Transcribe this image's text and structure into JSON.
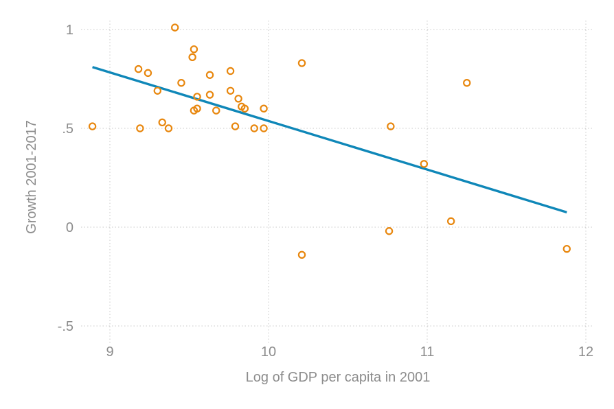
{
  "chart_data": {
    "type": "scatter",
    "title": "",
    "xlabel": "Log of GDP per capita in 2001",
    "ylabel": "Growth 2001-2017",
    "xlim": [
      8.88,
      11.96
    ],
    "ylim": [
      -0.58,
      1.05
    ],
    "x_ticks": [
      9,
      10,
      11,
      12
    ],
    "x_tick_labels": [
      "9",
      "10",
      "11",
      "12"
    ],
    "y_ticks": [
      1,
      0.5,
      0,
      -0.5
    ],
    "y_tick_labels": [
      "1",
      ".5",
      "0",
      "-.5"
    ],
    "grid": true,
    "legend": "none",
    "colors": {
      "points": "#e8870e",
      "fit_line": "#0f87b8",
      "text": "#8c8c8c",
      "grid": "#c8c8c8"
    },
    "series": [
      {
        "kind": "points",
        "points": [
          {
            "x": 8.89,
            "y": 0.51
          },
          {
            "x": 9.18,
            "y": 0.8
          },
          {
            "x": 9.19,
            "y": 0.5
          },
          {
            "x": 9.24,
            "y": 0.78
          },
          {
            "x": 9.3,
            "y": 0.69
          },
          {
            "x": 9.33,
            "y": 0.53
          },
          {
            "x": 9.37,
            "y": 0.5
          },
          {
            "x": 9.41,
            "y": 1.01
          },
          {
            "x": 9.45,
            "y": 0.73
          },
          {
            "x": 9.52,
            "y": 0.86
          },
          {
            "x": 9.53,
            "y": 0.9
          },
          {
            "x": 9.53,
            "y": 0.59
          },
          {
            "x": 9.55,
            "y": 0.6
          },
          {
            "x": 9.55,
            "y": 0.66
          },
          {
            "x": 9.63,
            "y": 0.77
          },
          {
            "x": 9.63,
            "y": 0.67
          },
          {
            "x": 9.67,
            "y": 0.59
          },
          {
            "x": 9.76,
            "y": 0.79
          },
          {
            "x": 9.76,
            "y": 0.69
          },
          {
            "x": 9.79,
            "y": 0.51
          },
          {
            "x": 9.81,
            "y": 0.65
          },
          {
            "x": 9.83,
            "y": 0.61
          },
          {
            "x": 9.85,
            "y": 0.6
          },
          {
            "x": 9.91,
            "y": 0.5
          },
          {
            "x": 9.97,
            "y": 0.6
          },
          {
            "x": 9.97,
            "y": 0.5
          },
          {
            "x": 10.21,
            "y": 0.83
          },
          {
            "x": 10.21,
            "y": -0.14
          },
          {
            "x": 10.76,
            "y": -0.02
          },
          {
            "x": 10.77,
            "y": 0.51
          },
          {
            "x": 10.98,
            "y": 0.32
          },
          {
            "x": 11.15,
            "y": 0.03
          },
          {
            "x": 11.25,
            "y": 0.73
          },
          {
            "x": 11.88,
            "y": -0.11
          }
        ]
      },
      {
        "kind": "fit_line",
        "points": [
          {
            "x": 8.89,
            "y": 0.81
          },
          {
            "x": 11.88,
            "y": 0.075
          }
        ]
      }
    ]
  }
}
